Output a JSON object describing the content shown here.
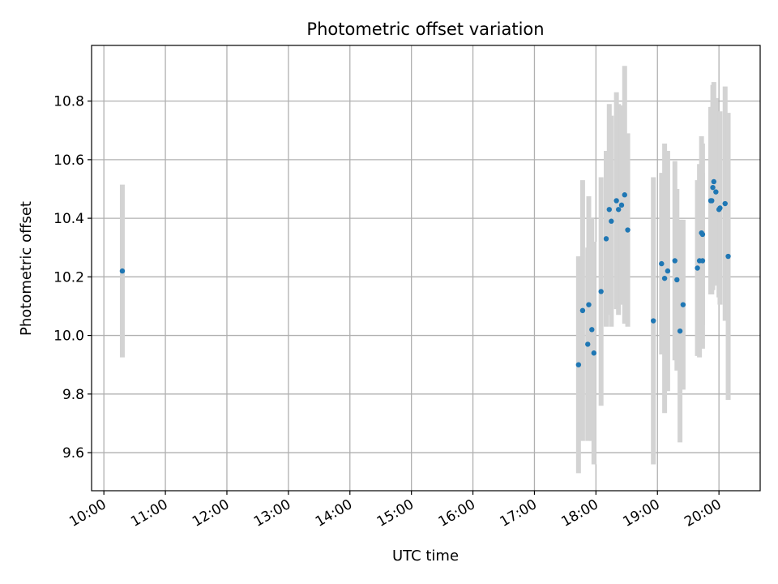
{
  "chart_data": {
    "type": "scatter",
    "title": "Photometric offset variation",
    "xlabel": "UTC time",
    "ylabel": "Photometric offset",
    "x_unit": "UTC hours",
    "xlim": [
      9.8,
      20.67
    ],
    "ylim": [
      9.47,
      10.99
    ],
    "grid": true,
    "x_ticks": [
      10,
      11,
      12,
      13,
      14,
      15,
      16,
      17,
      18,
      19,
      20
    ],
    "x_tick_labels": [
      "10:00",
      "11:00",
      "12:00",
      "13:00",
      "14:00",
      "15:00",
      "16:00",
      "17:00",
      "18:00",
      "19:00",
      "20:00"
    ],
    "y_ticks": [
      9.6,
      9.8,
      10.0,
      10.2,
      10.4,
      10.6,
      10.8
    ],
    "y_tick_labels": [
      "9.6",
      "9.8",
      "10.0",
      "10.2",
      "10.4",
      "10.6",
      "10.8"
    ],
    "colors": {
      "marker": "#1f77b4",
      "errorbar": "#d3d3d3",
      "grid": "#b0b0b0"
    },
    "points": [
      {
        "time": "10:18",
        "y": 10.22,
        "err": 0.295
      },
      {
        "time": "17:43",
        "y": 9.9,
        "err": 0.37
      },
      {
        "time": "17:47",
        "y": 10.085,
        "err": 0.445
      },
      {
        "time": "17:52",
        "y": 9.97,
        "err": 0.33
      },
      {
        "time": "17:53",
        "y": 10.105,
        "err": 0.37
      },
      {
        "time": "17:56",
        "y": 10.02,
        "err": 0.38
      },
      {
        "time": "17:58",
        "y": 9.94,
        "err": 0.38
      },
      {
        "time": "18:05",
        "y": 10.15,
        "err": 0.39
      },
      {
        "time": "18:10",
        "y": 10.33,
        "err": 0.3
      },
      {
        "time": "18:13",
        "y": 10.43,
        "err": 0.36
      },
      {
        "time": "18:15",
        "y": 10.39,
        "err": 0.36
      },
      {
        "time": "18:20",
        "y": 10.46,
        "err": 0.37
      },
      {
        "time": "18:22",
        "y": 10.43,
        "err": 0.36
      },
      {
        "time": "18:25",
        "y": 10.445,
        "err": 0.34
      },
      {
        "time": "18:28",
        "y": 10.48,
        "err": 0.44
      },
      {
        "time": "18:31",
        "y": 10.36,
        "err": 0.33
      },
      {
        "time": "18:56",
        "y": 10.05,
        "err": 0.49
      },
      {
        "time": "19:04",
        "y": 10.245,
        "err": 0.31
      },
      {
        "time": "19:07",
        "y": 10.195,
        "err": 0.46
      },
      {
        "time": "19:10",
        "y": 10.22,
        "err": 0.41
      },
      {
        "time": "19:17",
        "y": 10.255,
        "err": 0.34
      },
      {
        "time": "19:19",
        "y": 10.19,
        "err": 0.31
      },
      {
        "time": "19:22",
        "y": 10.015,
        "err": 0.38
      },
      {
        "time": "19:25",
        "y": 10.105,
        "err": 0.29
      },
      {
        "time": "19:39",
        "y": 10.23,
        "err": 0.3
      },
      {
        "time": "19:41",
        "y": 10.255,
        "err": 0.33
      },
      {
        "time": "19:43",
        "y": 10.35,
        "err": 0.33
      },
      {
        "time": "19:44",
        "y": 10.345,
        "err": 0.31
      },
      {
        "time": "19:44",
        "y": 10.255,
        "err": 0.3
      },
      {
        "time": "19:52",
        "y": 10.46,
        "err": 0.32
      },
      {
        "time": "19:53",
        "y": 10.46,
        "err": 0.32
      },
      {
        "time": "19:54",
        "y": 10.505,
        "err": 0.35
      },
      {
        "time": "19:55",
        "y": 10.525,
        "err": 0.34
      },
      {
        "time": "19:57",
        "y": 10.49,
        "err": 0.32
      },
      {
        "time": "20:00",
        "y": 10.43,
        "err": 0.3
      },
      {
        "time": "20:01",
        "y": 10.435,
        "err": 0.33
      },
      {
        "time": "20:06",
        "y": 10.45,
        "err": 0.4
      },
      {
        "time": "20:09",
        "y": 10.27,
        "err": 0.49
      }
    ]
  }
}
